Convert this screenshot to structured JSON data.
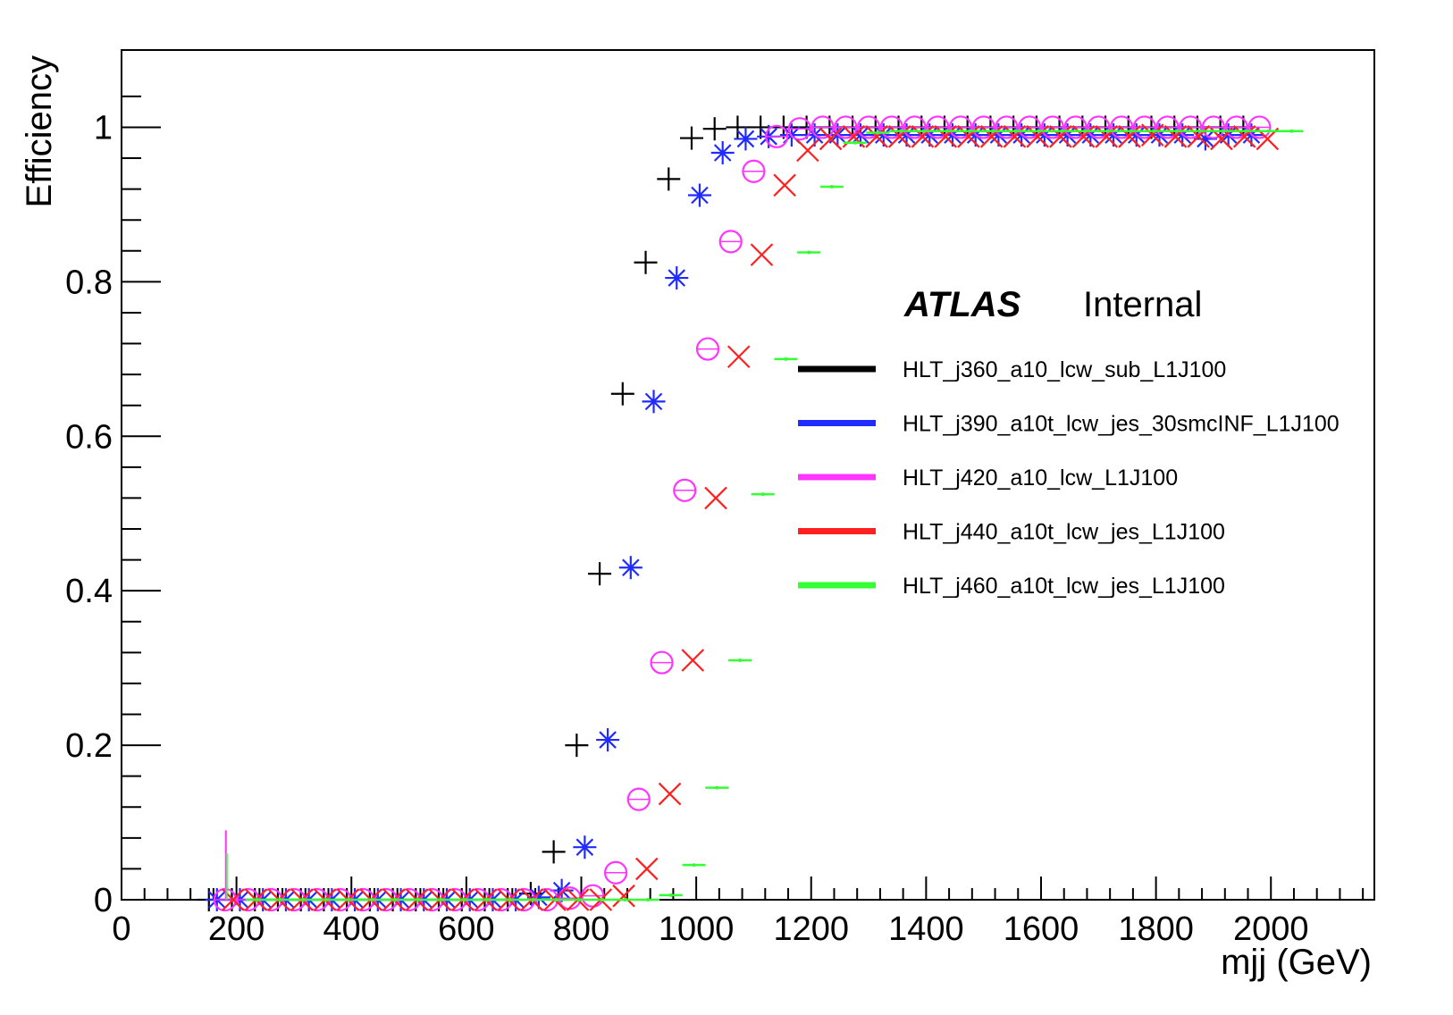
{
  "chart_data": {
    "type": "scatter",
    "title": "",
    "xlabel": "mjj (GeV)",
    "ylabel": "Efficiency",
    "xlim": [
      0,
      2180
    ],
    "ylim": [
      0,
      1.1
    ],
    "x_ticks": [
      "0",
      "200",
      "400",
      "600",
      "800",
      "1000",
      "1200",
      "1400",
      "1600",
      "1800",
      "2000"
    ],
    "y_ticks": [
      "0",
      "0.2",
      "0.4",
      "0.6",
      "0.8",
      "1"
    ],
    "grid": false,
    "legend_position": "right-center",
    "annotation": {
      "brand": "ATLAS",
      "label": "Internal"
    },
    "series": [
      {
        "name": "HLT_j360_a10_lcw_sub_L1J100",
        "color": "#000000",
        "marker": "plus",
        "x": [
          180,
          220,
          260,
          300,
          340,
          380,
          420,
          460,
          500,
          540,
          580,
          620,
          660,
          700,
          740,
          780,
          820,
          860,
          900,
          940,
          980,
          1020,
          1060,
          1100,
          1140,
          1180,
          1220,
          1260,
          1300,
          1340,
          1380,
          1420,
          1460,
          1500,
          1540,
          1580,
          1620,
          1660,
          1700,
          1740,
          1780,
          1820,
          1860,
          1900,
          1940,
          1980
        ],
        "y": [
          0,
          0,
          0,
          0,
          0,
          0,
          0,
          0,
          0,
          0,
          0,
          0,
          0,
          0,
          0.008,
          0.062,
          0.2,
          0.422,
          0.655,
          0.825,
          0.933,
          0.986,
          0.998,
          1.0,
          1.0,
          1.0,
          1.0,
          1.0,
          1.0,
          1.0,
          1.0,
          1.0,
          1.0,
          1.0,
          1.0,
          1.0,
          1.0,
          1.0,
          1.0,
          1.0,
          1.0,
          1.0,
          1.0,
          1.0,
          1.0,
          1.0
        ]
      },
      {
        "name": "HLT_j390_a10t_lcw_jes_30smcINF_L1J100",
        "color": "#1f2bff",
        "marker": "star",
        "x": [
          180,
          220,
          260,
          300,
          340,
          380,
          420,
          460,
          500,
          540,
          580,
          620,
          660,
          700,
          740,
          780,
          820,
          860,
          900,
          940,
          980,
          1020,
          1060,
          1100,
          1140,
          1180,
          1220,
          1260,
          1300,
          1340,
          1380,
          1420,
          1460,
          1500,
          1540,
          1580,
          1620,
          1660,
          1700,
          1740,
          1780,
          1820,
          1860,
          1900,
          1940,
          1980
        ],
        "y": [
          0,
          0,
          0,
          0,
          0,
          0,
          0,
          0,
          0,
          0,
          0,
          0,
          0,
          0,
          0.003,
          0.012,
          0.068,
          0.207,
          0.43,
          0.645,
          0.805,
          0.912,
          0.967,
          0.985,
          0.988,
          0.99,
          0.99,
          0.99,
          0.99,
          0.99,
          0.99,
          0.99,
          0.99,
          0.99,
          0.99,
          0.99,
          0.99,
          0.99,
          0.99,
          0.99,
          0.99,
          0.99,
          0.99,
          0.985,
          0.99,
          0.99
        ]
      },
      {
        "name": "HLT_j420_a10_lcw_L1J100",
        "color": "#ff35ff",
        "marker": "circle",
        "x": [
          180,
          220,
          260,
          300,
          340,
          380,
          420,
          460,
          500,
          540,
          580,
          620,
          660,
          700,
          740,
          780,
          820,
          860,
          900,
          940,
          980,
          1020,
          1060,
          1100,
          1140,
          1180,
          1220,
          1260,
          1300,
          1340,
          1380,
          1420,
          1460,
          1500,
          1540,
          1580,
          1620,
          1660,
          1700,
          1740,
          1780,
          1820,
          1860,
          1900,
          1940,
          1980
        ],
        "y": [
          0,
          0,
          0,
          0,
          0,
          0,
          0,
          0,
          0,
          0,
          0,
          0,
          0,
          0,
          0,
          0.002,
          0.005,
          0.035,
          0.13,
          0.307,
          0.53,
          0.713,
          0.852,
          0.943,
          0.988,
          0.998,
          1.0,
          1.0,
          1.0,
          1.0,
          1.0,
          1.0,
          1.0,
          1.0,
          1.0,
          1.0,
          1.0,
          1.0,
          1.0,
          1.0,
          1.0,
          1.0,
          1.0,
          1.0,
          1.0,
          1.0
        ]
      },
      {
        "name": "HLT_j440_a10t_lcw_jes_L1J100",
        "color": "#ff1f1f",
        "marker": "cross",
        "x": [
          180,
          220,
          260,
          300,
          340,
          380,
          420,
          460,
          500,
          540,
          580,
          620,
          660,
          700,
          740,
          780,
          820,
          860,
          900,
          940,
          980,
          1020,
          1060,
          1100,
          1140,
          1180,
          1220,
          1260,
          1300,
          1340,
          1380,
          1420,
          1460,
          1500,
          1540,
          1580,
          1620,
          1660,
          1700,
          1740,
          1780,
          1820,
          1860,
          1900,
          1940,
          1980
        ],
        "y": [
          0,
          0,
          0,
          0,
          0,
          0,
          0,
          0,
          0,
          0,
          0,
          0,
          0,
          0,
          0,
          0,
          0,
          0.005,
          0.04,
          0.137,
          0.31,
          0.52,
          0.703,
          0.835,
          0.925,
          0.97,
          0.985,
          0.988,
          0.988,
          0.988,
          0.988,
          0.988,
          0.988,
          0.988,
          0.988,
          0.988,
          0.988,
          0.988,
          0.988,
          0.988,
          0.99,
          0.988,
          0.988,
          0.985,
          0.988,
          0.985
        ]
      },
      {
        "name": "HLT_j460_a10t_lcw_jes_L1J100",
        "color": "#33ff33",
        "marker": "dash",
        "x": [
          180,
          220,
          260,
          300,
          340,
          380,
          420,
          460,
          500,
          540,
          580,
          620,
          660,
          700,
          740,
          780,
          820,
          860,
          900,
          940,
          980,
          1020,
          1060,
          1100,
          1140,
          1180,
          1220,
          1260,
          1300,
          1340,
          1380,
          1420,
          1460,
          1500,
          1540,
          1580,
          1620,
          1660,
          1700,
          1740,
          1780,
          1820,
          1860,
          1900,
          1940,
          1980
        ],
        "y": [
          0,
          0,
          0,
          0,
          0,
          0,
          0,
          0,
          0,
          0,
          0,
          0,
          0,
          0,
          0,
          0,
          0,
          0,
          0.006,
          0.045,
          0.145,
          0.31,
          0.525,
          0.7,
          0.838,
          0.923,
          0.98,
          0.993,
          0.995,
          0.995,
          0.995,
          0.995,
          0.995,
          0.995,
          0.995,
          0.995,
          0.995,
          0.995,
          0.995,
          0.995,
          0.995,
          0.995,
          0.995,
          0.995,
          0.995,
          0.995
        ]
      }
    ]
  }
}
